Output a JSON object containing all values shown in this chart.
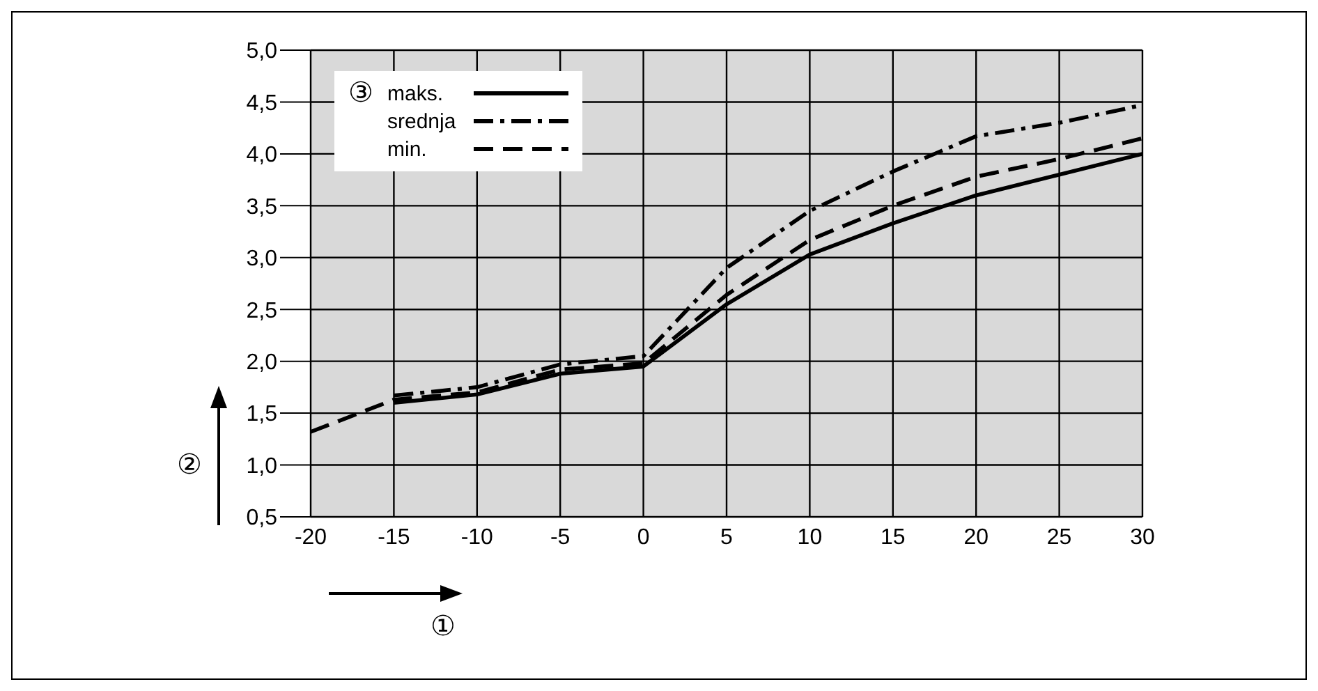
{
  "chart_data": {
    "type": "line",
    "xlabel": "①",
    "ylabel": "②",
    "legend_title": "③",
    "xlim": [
      -20,
      30
    ],
    "xticks": [
      -20,
      -15,
      -10,
      -5,
      0,
      5,
      10,
      15,
      20,
      25,
      30
    ],
    "ylim": [
      0.5,
      5
    ],
    "yticks": [
      {
        "value": 0.5,
        "label": "0,5"
      },
      {
        "value": 1,
        "label": "1,0"
      },
      {
        "value": 1.5,
        "label": "1,5"
      },
      {
        "value": 2,
        "label": "2,0"
      },
      {
        "value": 2.5,
        "label": "2,5"
      },
      {
        "value": 3,
        "label": "3,0"
      },
      {
        "value": 3.5,
        "label": "3,5"
      },
      {
        "value": 4,
        "label": "4,0"
      },
      {
        "value": 4.5,
        "label": "4,5"
      },
      {
        "value": 5,
        "label": "5,0"
      }
    ],
    "grid": true,
    "legend": "top left",
    "marker": "none",
    "series": [
      {
        "name": "maks.",
        "color": "#000000",
        "line_style": "solid",
        "x": [
          -15,
          -10,
          -5,
          0,
          5,
          10,
          15,
          20,
          25,
          30
        ],
        "values": [
          1.6,
          1.68,
          1.88,
          1.95,
          2.55,
          3.03,
          3.33,
          3.6,
          3.8,
          4.0
        ]
      },
      {
        "name": "srednja",
        "color": "#000000",
        "line_style": "dashdot",
        "x": [
          -15,
          -10,
          -5,
          0,
          5,
          10,
          15,
          20,
          25,
          30
        ],
        "values": [
          1.67,
          1.75,
          1.97,
          2.05,
          2.9,
          3.45,
          3.83,
          4.17,
          4.3,
          4.47
        ]
      },
      {
        "name": "min.",
        "color": "#000000",
        "line_style": "dashed",
        "x": [
          -20,
          -15,
          -10,
          -5,
          0,
          5,
          10,
          15,
          20,
          25,
          30
        ],
        "values": [
          1.32,
          1.63,
          1.7,
          1.92,
          1.98,
          2.64,
          3.17,
          3.5,
          3.78,
          3.95,
          4.15
        ]
      }
    ]
  }
}
